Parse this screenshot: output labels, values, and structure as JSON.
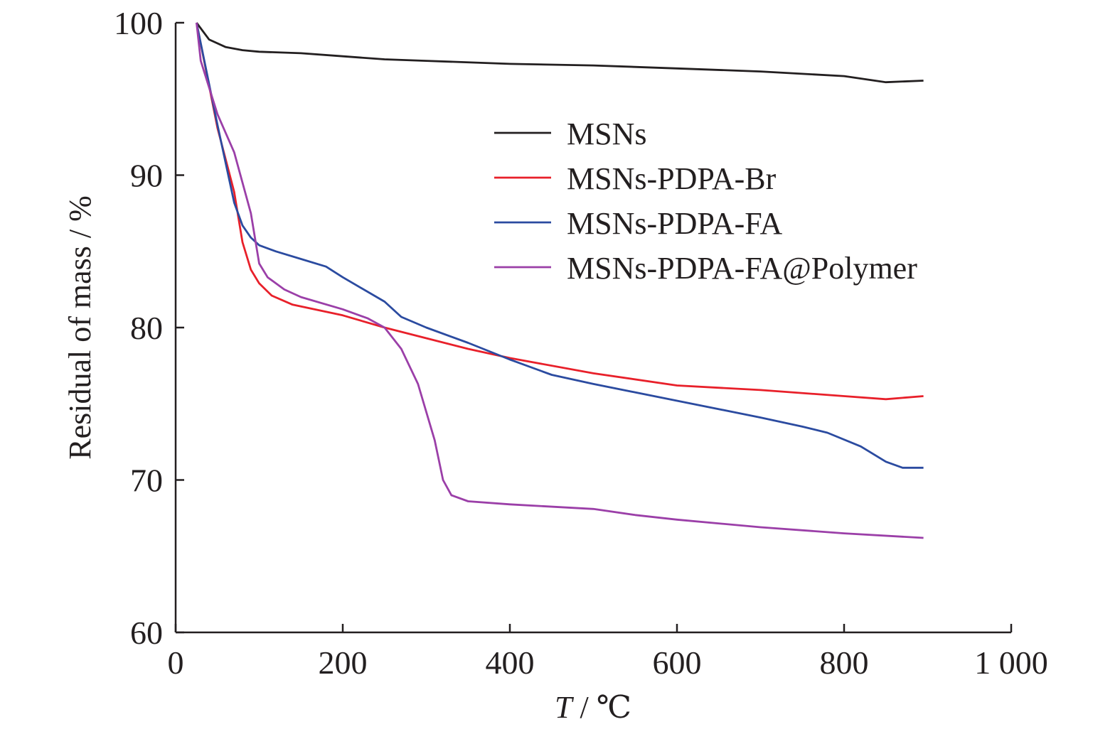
{
  "chart_data": {
    "type": "line",
    "title": "",
    "xlabel_var": "T",
    "xlabel_unit": " / ℃",
    "ylabel": "Residual of mass / %",
    "xlim": [
      0,
      1000
    ],
    "ylim": [
      60,
      100
    ],
    "xticks": [
      0,
      200,
      400,
      600,
      800,
      1000
    ],
    "xtick_labels": [
      "0",
      "200",
      "400",
      "600",
      "800",
      "1 000"
    ],
    "yticks": [
      60,
      70,
      80,
      90,
      100
    ],
    "ytick_labels": [
      "60",
      "70",
      "80",
      "90",
      "100"
    ],
    "grid": false,
    "legend_position": "upper-right",
    "series": [
      {
        "name": "MSNs",
        "color": "#231f20",
        "x": [
          25,
          40,
          60,
          80,
          100,
          150,
          200,
          250,
          300,
          400,
          500,
          600,
          700,
          800,
          850,
          895
        ],
        "y": [
          100,
          98.9,
          98.4,
          98.2,
          98.1,
          98.0,
          97.8,
          97.6,
          97.5,
          97.3,
          97.2,
          97.0,
          96.8,
          96.5,
          96.1,
          96.2
        ]
      },
      {
        "name": "MSNs-PDPA-Br",
        "color": "#e8202a",
        "x": [
          25,
          50,
          70,
          80,
          90,
          100,
          115,
          140,
          200,
          250,
          300,
          350,
          400,
          500,
          600,
          700,
          800,
          850,
          895
        ],
        "y": [
          100,
          93.1,
          88.9,
          85.6,
          83.8,
          82.9,
          82.1,
          81.5,
          80.8,
          80.0,
          79.3,
          78.6,
          78.0,
          77.0,
          76.2,
          75.9,
          75.5,
          75.3,
          75.5
        ]
      },
      {
        "name": "MSNs-PDPA-FA",
        "color": "#2b4ba0",
        "x": [
          25,
          50,
          70,
          80,
          90,
          100,
          120,
          150,
          180,
          200,
          250,
          270,
          300,
          350,
          400,
          450,
          500,
          600,
          700,
          750,
          780,
          820,
          850,
          870,
          895
        ],
        "y": [
          100,
          93.3,
          88.2,
          86.7,
          85.9,
          85.4,
          85.0,
          84.5,
          84.0,
          83.3,
          81.7,
          80.7,
          80.0,
          79.0,
          77.9,
          76.9,
          76.3,
          75.2,
          74.1,
          73.5,
          73.1,
          72.2,
          71.2,
          70.8,
          70.8
        ]
      },
      {
        "name": "MSNs-PDPA-FA@Polymer",
        "color": "#9b3fa8",
        "x": [
          25,
          30,
          50,
          70,
          90,
          100,
          110,
          130,
          150,
          200,
          230,
          250,
          270,
          290,
          310,
          320,
          330,
          350,
          400,
          500,
          550,
          600,
          700,
          800,
          895
        ],
        "y": [
          100,
          97.5,
          94.0,
          91.5,
          87.5,
          84.2,
          83.3,
          82.5,
          82.0,
          81.2,
          80.6,
          80.0,
          78.6,
          76.3,
          72.6,
          70.0,
          69.0,
          68.6,
          68.4,
          68.1,
          67.7,
          67.4,
          66.9,
          66.5,
          66.2
        ]
      }
    ]
  }
}
